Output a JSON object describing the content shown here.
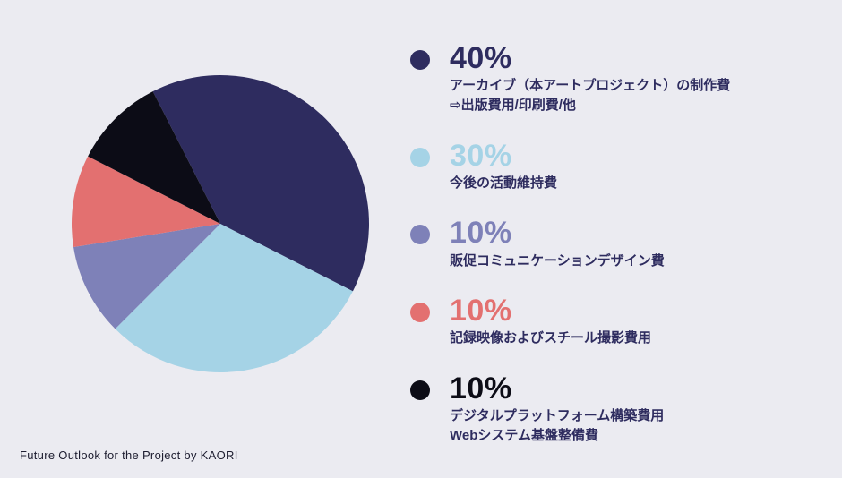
{
  "background": "#ebebf1",
  "footer": {
    "caption": "Future Outlook for the Project by KAORI"
  },
  "chart_data": {
    "type": "pie",
    "title": "",
    "legend_position": "right",
    "start_angle_deg": -27,
    "slices": [
      {
        "pct_label": "40%",
        "value": 40,
        "color": "#2e2c5f",
        "label": "アーカイブ（本アートプロジェクト）の制作費",
        "sublabel": "⇨出版費用/印刷費/他"
      },
      {
        "pct_label": "30%",
        "value": 30,
        "color": "#a5d3e6",
        "label": "今後の活動維持費",
        "sublabel": ""
      },
      {
        "pct_label": "10%",
        "value": 10,
        "color": "#7e81b8",
        "label": "販促コミュニケーションデザイン費",
        "sublabel": ""
      },
      {
        "pct_label": "10%",
        "value": 10,
        "color": "#e37070",
        "label": "記録映像およびスチール撮影費用",
        "sublabel": ""
      },
      {
        "pct_label": "10%",
        "value": 10,
        "color": "#0c0c16",
        "label": "デジタルプラットフォーム構築費用",
        "sublabel": "Webシステム基盤整備費"
      }
    ]
  }
}
